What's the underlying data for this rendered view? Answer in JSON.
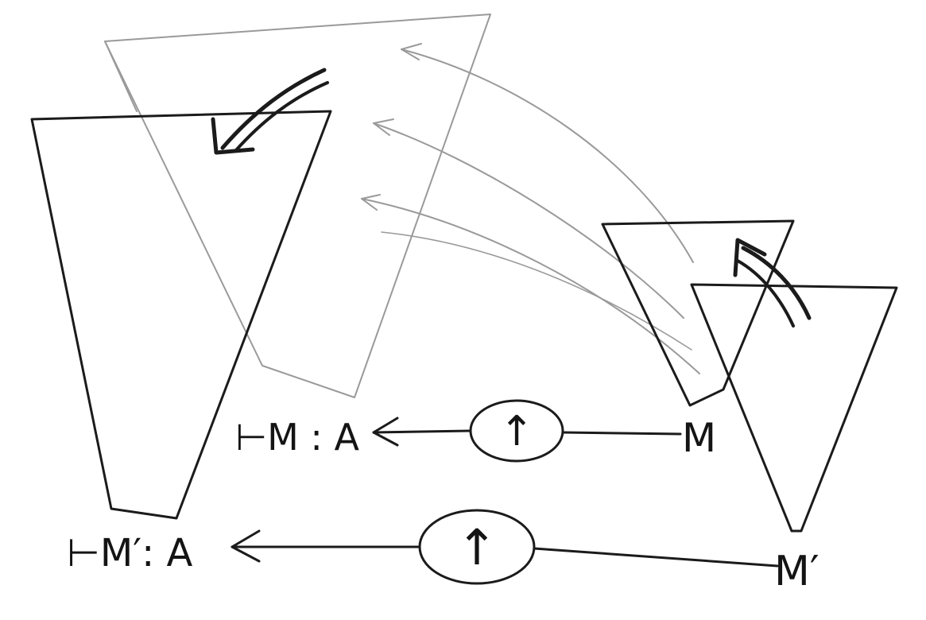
{
  "labels": {
    "judgement_top": "⊢M : A",
    "judgement_bottom": "⊢M′: A",
    "term_top": "M",
    "term_bottom": "M′",
    "op_top_symbol": "↑",
    "op_bottom_symbol": "↑"
  },
  "colors": {
    "ink": "#1b1b1b",
    "faint": "#9a9a9a",
    "paper": "#ffffff"
  }
}
